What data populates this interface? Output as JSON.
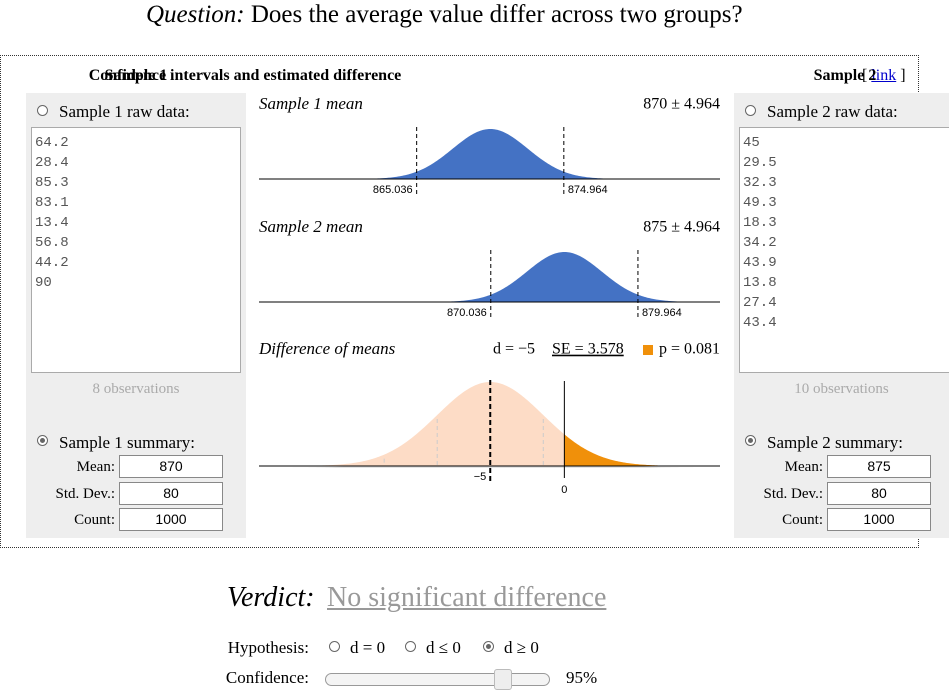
{
  "question": {
    "label": "Question:",
    "text": "Does the average value differ across two groups?"
  },
  "middle_header": "Confidence intervals and estimated difference",
  "link": {
    "open": "[",
    "text": "link",
    "close": "]"
  },
  "samples": [
    {
      "header": "Sample 1",
      "raw_option": "Sample 1 raw data:",
      "raw_data": [
        64.2,
        28.4,
        85.3,
        83.1,
        13.4,
        56.8,
        44.2,
        90
      ],
      "observations": "8 observations",
      "summary_option": "Sample 1 summary:",
      "fields": [
        {
          "label": "Mean:",
          "value": 870
        },
        {
          "label": "Std. Dev.:",
          "value": 80
        },
        {
          "label": "Count:",
          "value": 1000
        }
      ]
    },
    {
      "header": "Sample 2",
      "raw_option": "Sample 2 raw data:",
      "raw_data": [
        45,
        29.5,
        32.3,
        49.3,
        18.3,
        34.2,
        43.9,
        13.8,
        27.4,
        43.4
      ],
      "observations": "10 observations",
      "summary_option": "Sample 2 summary:",
      "fields": [
        {
          "label": "Mean:",
          "value": 875
        },
        {
          "label": "Std. Dev.:",
          "value": 80
        },
        {
          "label": "Count:",
          "value": 1000
        }
      ]
    }
  ],
  "chart_data": [
    {
      "type": "density",
      "title": "Sample 1 mean",
      "estimate": "870 ± 4.964",
      "color": "#4472c4",
      "xlim": [
        854.4,
        885.5
      ],
      "xticks": [
        865.036,
        874.964
      ]
    },
    {
      "type": "density",
      "title": "Sample 2 mean",
      "estimate": "875 ± 4.964",
      "color": "#4472c4",
      "xlim": [
        854.4,
        885.5
      ],
      "xticks": [
        870.036,
        879.964
      ]
    },
    {
      "type": "difference",
      "title": "Difference of means",
      "d": {
        "value": -5,
        "label": "d = −5"
      },
      "se": {
        "value": 3.578,
        "label": "SE = 3.578"
      },
      "p": {
        "value": 0.081,
        "label": "p = 0.081"
      },
      "color": "#fddcc6",
      "tail_color": "#f0900a",
      "xlim": [
        -20.6,
        10.5
      ],
      "xticks": [
        {
          "value": -5,
          "label": "−5"
        },
        0
      ]
    }
  ],
  "verdict": {
    "label": "Verdict:",
    "text": "No significant difference"
  },
  "hypothesis": {
    "label": "Hypothesis:",
    "options": [
      "d = 0",
      "d ≤ 0",
      "d ≥ 0"
    ],
    "selected": 2
  },
  "confidence": {
    "label": "Confidence:",
    "value": "95%"
  }
}
